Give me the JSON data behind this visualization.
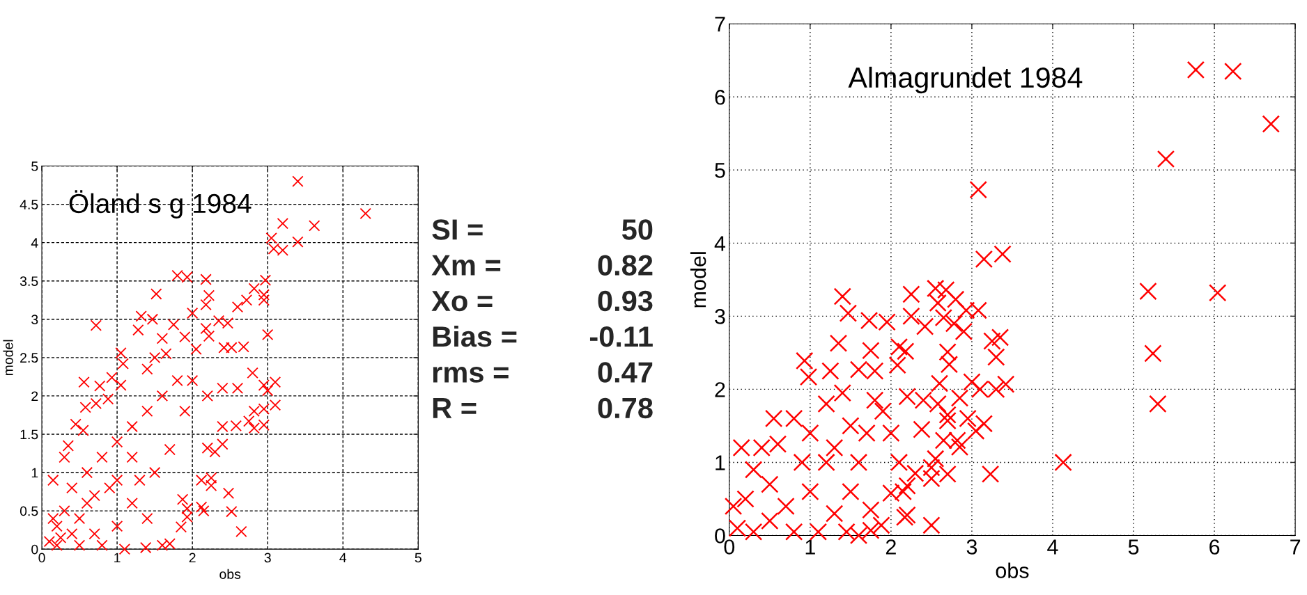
{
  "chart_data": [
    {
      "type": "scatter",
      "title": "Öland s g 1984",
      "xlabel": "obs",
      "ylabel": "model",
      "xlim": [
        0,
        5
      ],
      "ylim": [
        0,
        5
      ],
      "xticks": [
        0,
        1,
        2,
        3,
        4,
        5
      ],
      "yticks": [
        0,
        0.5,
        1,
        1.5,
        2,
        2.5,
        3,
        3.5,
        4,
        4.5,
        5
      ],
      "grid": true,
      "marker": "cross",
      "series": [
        {
          "color": "#ff0000",
          "x": [
            3.4,
            4.3,
            3.2,
            3.62,
            3.05,
            3.4,
            3.08,
            3.2,
            1.8,
            1.93,
            2.18,
            2.97,
            2.82,
            1.52,
            2.22,
            2.95,
            2.95,
            2.72,
            2.6,
            2.18,
            1.32,
            1.47,
            2.0,
            2.35,
            2.47,
            0.72,
            1.28,
            1.75,
            2.18,
            2.22,
            3.0,
            1.6,
            1.9,
            2.68,
            2.42,
            2.52,
            2.05,
            1.05,
            1.08,
            0.93,
            0.56,
            0.77,
            1.05,
            0.58,
            0.88,
            0.72,
            3.1,
            2.95,
            3.0,
            2.95,
            3.1,
            2.82,
            2.95,
            2.82,
            2.75,
            2.58,
            2.4,
            2.4,
            2.3,
            2.2,
            2.25,
            2.25,
            2.12,
            2.48,
            2.52,
            2.65,
            2.15,
            2.12,
            1.85,
            1.87,
            1.93,
            1.93,
            1.7,
            1.6,
            1.38,
            0.45,
            0.55,
            1.5,
            1.8,
            2.0,
            1.6,
            1.4,
            1.2,
            1.0,
            1.2,
            0.8,
            0.6,
            0.4,
            0.3,
            0.2,
            0.1,
            0.2,
            0.5,
            0.8,
            1.0,
            1.2,
            1.5,
            1.7,
            1.4,
            1.1,
            0.7,
            0.5,
            0.15,
            0.3,
            0.35,
            1.9,
            2.2,
            2.4,
            2.6,
            2.8,
            1.65,
            1.4,
            0.9,
            0.6,
            0.4,
            0.25,
            0.15,
            1.3,
            1.0,
            0.7
          ],
          "values": [
            4.8,
            4.38,
            4.25,
            4.22,
            4.06,
            4.01,
            3.92,
            3.9,
            3.57,
            3.55,
            3.52,
            3.51,
            3.4,
            3.33,
            3.31,
            3.32,
            3.25,
            3.25,
            3.16,
            3.19,
            3.04,
            3.0,
            3.08,
            2.98,
            2.95,
            2.92,
            2.86,
            2.93,
            2.88,
            2.78,
            2.8,
            2.75,
            2.77,
            2.64,
            2.63,
            2.63,
            2.61,
            2.56,
            2.42,
            2.24,
            2.18,
            2.13,
            2.14,
            1.85,
            1.96,
            1.9,
            2.18,
            2.14,
            2.07,
            1.83,
            1.88,
            1.8,
            1.62,
            1.58,
            1.67,
            1.61,
            1.6,
            1.37,
            1.27,
            1.32,
            0.93,
            0.83,
            0.9,
            0.73,
            0.49,
            0.23,
            0.5,
            0.55,
            0.29,
            0.65,
            0.53,
            0.42,
            0.07,
            0.05,
            0.02,
            1.63,
            1.55,
            2.5,
            2.2,
            2.2,
            2.0,
            1.8,
            1.6,
            1.4,
            1.2,
            1.2,
            1.0,
            0.8,
            0.5,
            0.3,
            0.1,
            0.05,
            0.05,
            0.05,
            0.3,
            0.6,
            1.0,
            1.3,
            0.4,
            0.0,
            0.7,
            0.4,
            0.9,
            1.2,
            1.35,
            1.8,
            2.0,
            2.1,
            2.1,
            2.3,
            2.55,
            2.35,
            0.8,
            0.6,
            0.2,
            0.15,
            0.4,
            0.9,
            0.9,
            0.2
          ]
        }
      ]
    },
    {
      "type": "other",
      "annotations": [
        "SI = 50",
        "Xm = 0.82",
        "Xo = 0.93",
        "Bias = -0.11",
        "rms = 0.47",
        "R = 0.78"
      ]
    },
    {
      "type": "scatter",
      "title": "Almagrundet 1984",
      "xlabel": "obs",
      "ylabel": "model",
      "xlim": [
        0,
        7
      ],
      "ylim": [
        0,
        7
      ],
      "xticks": [
        0,
        1,
        2,
        3,
        4,
        5,
        6,
        7
      ],
      "yticks": [
        0,
        1,
        2,
        3,
        4,
        5,
        6,
        7
      ],
      "grid": true,
      "marker": "cross",
      "series": [
        {
          "color": "#ff0000",
          "x": [
            5.77,
            6.23,
            6.7,
            5.4,
            3.08,
            3.38,
            3.15,
            5.18,
            6.04,
            5.24,
            5.3,
            4.13,
            3.23,
            1.4,
            1.47,
            2.25,
            2.55,
            2.68,
            2.8,
            2.58,
            2.93,
            3.08,
            2.25,
            1.73,
            1.95,
            2.65,
            2.78,
            2.42,
            2.9,
            1.35,
            3.35,
            3.25,
            3.3,
            2.7,
            2.72,
            1.75,
            2.1,
            2.18,
            0.93,
            2.08,
            1.6,
            1.8,
            0.98,
            1.25,
            3.42,
            3.3,
            3.1,
            3.0,
            2.6,
            2.85,
            2.58,
            2.95,
            3.05,
            3.15,
            2.7,
            2.7,
            2.82,
            2.85,
            2.55,
            2.65,
            2.38,
            2.5,
            2.5,
            2.7,
            2.3,
            2.2,
            2.15,
            2.0,
            2.17,
            2.2,
            2.5,
            1.88,
            1.75,
            1.45,
            0.1,
            0.2,
            0.3,
            0.4,
            0.55,
            0.8,
            1.0,
            1.2,
            1.0,
            0.7,
            0.5,
            0.8,
            1.1,
            1.3,
            1.5,
            1.6,
            1.7,
            1.9,
            2.2,
            2.4,
            1.5,
            1.2,
            1.4,
            1.8,
            2.0,
            2.1,
            0.3,
            0.05,
            0.15,
            0.6,
            0.9,
            0.5,
            1.3,
            1.75,
            1.6
          ],
          "values": [
            6.37,
            6.35,
            5.63,
            5.15,
            4.73,
            3.85,
            3.78,
            3.34,
            3.32,
            2.49,
            1.8,
            1.0,
            0.84,
            3.27,
            3.04,
            3.3,
            3.38,
            3.36,
            3.23,
            3.18,
            3.08,
            3.08,
            3.0,
            2.94,
            2.92,
            2.98,
            2.9,
            2.86,
            2.79,
            2.63,
            2.71,
            2.66,
            2.44,
            2.51,
            2.34,
            2.53,
            2.58,
            2.52,
            2.39,
            2.33,
            2.27,
            2.25,
            2.17,
            2.25,
            2.07,
            2.0,
            2.0,
            2.1,
            2.08,
            1.88,
            1.8,
            1.6,
            1.43,
            1.53,
            1.57,
            1.65,
            1.3,
            1.21,
            1.05,
            1.3,
            1.45,
            0.93,
            0.78,
            0.84,
            0.85,
            0.68,
            0.6,
            0.58,
            0.25,
            0.28,
            0.14,
            0.14,
            0.07,
            0.05,
            0.1,
            0.5,
            0.9,
            1.2,
            1.6,
            1.6,
            1.4,
            1.0,
            0.6,
            0.4,
            0.2,
            0.05,
            0.05,
            0.3,
            0.6,
            1.0,
            1.4,
            1.7,
            1.9,
            1.85,
            1.5,
            1.8,
            1.95,
            1.85,
            1.4,
            1.0,
            0.05,
            0.4,
            1.2,
            1.25,
            1.0,
            0.7,
            1.2,
            0.35,
            0.0
          ]
        }
      ]
    }
  ]
}
